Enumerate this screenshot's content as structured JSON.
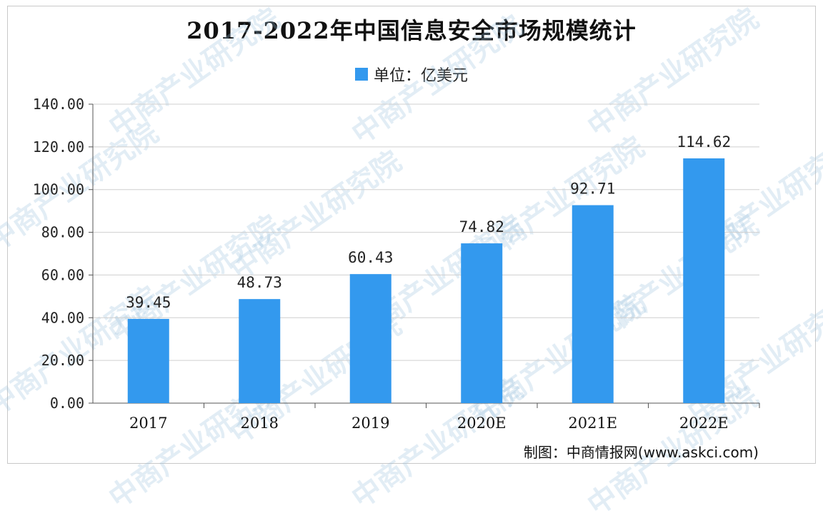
{
  "chart_data": {
    "type": "bar",
    "title": "2017-2022年中国信息安全市场规模统计",
    "legend": "单位：亿美元",
    "categories": [
      "2017",
      "2018",
      "2019",
      "2020E",
      "2021E",
      "2022E"
    ],
    "values": [
      39.45,
      48.73,
      60.43,
      74.82,
      92.71,
      114.62
    ],
    "value_labels": [
      "39.45",
      "48.73",
      "60.43",
      "74.82",
      "92.71",
      "114.62"
    ],
    "ylim": [
      0,
      140
    ],
    "yticks": [
      "0.00",
      "20.00",
      "40.00",
      "60.00",
      "80.00",
      "100.00",
      "120.00",
      "140.00"
    ],
    "grid": true,
    "bar_color": "#3399ee"
  },
  "credit": "制图：中商情报网(www.askci.com)",
  "watermark": "中商产业研究院"
}
